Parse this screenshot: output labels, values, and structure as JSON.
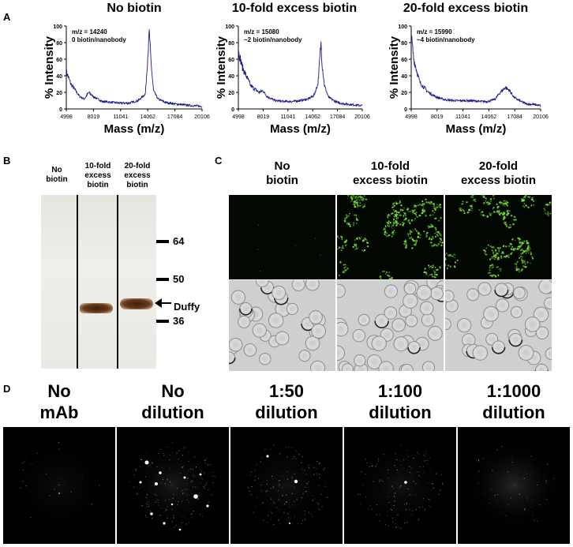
{
  "panels": {
    "a": "A",
    "b": "B",
    "c": "C",
    "d": "D"
  },
  "panel_a": {
    "y_label": "% Intensity",
    "x_label": "Mass (m/z)",
    "y_ticks": [
      "100",
      "80",
      "60",
      "40",
      "20",
      "0"
    ],
    "x_ticks": [
      "4998",
      "8019",
      "11041",
      "14062",
      "17084",
      "20106"
    ],
    "spectra": [
      {
        "title": "No biotin",
        "mz": "m/z = 14240",
        "ratio": "0 biotin/nanobody"
      },
      {
        "title": "10-fold excess biotin",
        "mz": "m/z = 15080",
        "ratio": "~2 biotin/nanobody"
      },
      {
        "title": "20-fold excess biotin",
        "mz": "m/z = 15990",
        "ratio": "~4 biotin/nanobody"
      }
    ]
  },
  "chart_data": [
    {
      "type": "line",
      "title": "No biotin",
      "xlabel": "Mass (m/z)",
      "ylabel": "% Intensity",
      "xlim": [
        4998,
        20106
      ],
      "ylim": [
        0,
        100
      ],
      "annotation": [
        "m/z = 14240",
        "0 biotin/nanobody"
      ],
      "series": [
        {
          "x": [
            4998,
            5500,
            6500,
            7000,
            7500,
            8000,
            9000,
            10000,
            11000,
            12000,
            13000,
            13800,
            14100,
            14240,
            14400,
            14700,
            15200,
            16000,
            17000,
            18000,
            19000,
            20106
          ],
          "y": [
            45,
            30,
            15,
            12,
            20,
            15,
            9,
            8,
            7,
            7,
            10,
            18,
            70,
            92,
            60,
            22,
            12,
            8,
            6,
            5,
            4,
            3
          ]
        }
      ]
    },
    {
      "type": "line",
      "title": "10-fold excess biotin",
      "xlabel": "Mass (m/z)",
      "ylabel": "% Intensity",
      "xlim": [
        4998,
        20106
      ],
      "ylim": [
        0,
        100
      ],
      "annotation": [
        "m/z = 15080",
        "~2 biotin/nanobody"
      ],
      "series": [
        {
          "x": [
            4998,
            5500,
            6500,
            7500,
            8000,
            8500,
            9500,
            10500,
            11500,
            12500,
            13500,
            14200,
            14700,
            15000,
            15080,
            15200,
            15500,
            16000,
            17000,
            18000,
            19000,
            20106
          ],
          "y": [
            70,
            50,
            28,
            20,
            22,
            15,
            10,
            9,
            9,
            10,
            12,
            16,
            30,
            70,
            80,
            55,
            28,
            14,
            8,
            6,
            5,
            4
          ]
        }
      ]
    },
    {
      "type": "line",
      "title": "20-fold excess biotin",
      "xlabel": "Mass (m/z)",
      "ylabel": "% Intensity",
      "xlim": [
        4998,
        20106
      ],
      "ylim": [
        0,
        100
      ],
      "annotation": [
        "m/z = 15990",
        "~4 biotin/nanobody"
      ],
      "series": [
        {
          "x": [
            4998,
            5300,
            6000,
            7000,
            8000,
            9000,
            10000,
            11000,
            12000,
            13000,
            14000,
            14800,
            15400,
            15990,
            16500,
            17000,
            17800,
            18500,
            19500,
            20106
          ],
          "y": [
            88,
            60,
            32,
            20,
            14,
            11,
            10,
            10,
            10,
            9,
            9,
            12,
            20,
            26,
            22,
            14,
            9,
            6,
            5,
            4
          ]
        }
      ]
    }
  ],
  "panel_b": {
    "lanes": [
      "No\nbiotin",
      "10-fold\nexcess\nbiotin",
      "20-fold\nexcess\nbiotin"
    ],
    "markers": [
      "64",
      "50",
      "36"
    ],
    "band_label": "Duffy"
  },
  "panel_c": {
    "titles": [
      "No\nbiotin",
      "10-fold\nexcess biotin",
      "20-fold\nexcess biotin"
    ]
  },
  "panel_d": {
    "titles": [
      "No\nmAb",
      "No\ndilution",
      "1:50\ndilution",
      "1:100\ndilution",
      "1:1000\ndilution"
    ]
  }
}
